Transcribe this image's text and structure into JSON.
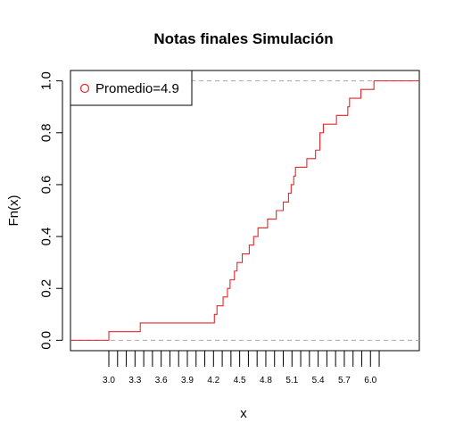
{
  "chart_data": {
    "type": "line",
    "subtype": "ecdf-step",
    "title": "Notas finales Simulación",
    "xlabel": "x",
    "ylabel": "Fn(x)",
    "xlim": [
      2.56,
      6.56
    ],
    "ylim": [
      -0.04,
      1.04
    ],
    "yticks": [
      0.0,
      0.2,
      0.4,
      0.6,
      0.8,
      1.0
    ],
    "ytick_labels": [
      "0.0",
      "0.2",
      "0.4",
      "0.6",
      "0.8",
      "1.0"
    ],
    "xticks": [
      3.0,
      3.1,
      3.2,
      3.3,
      3.4,
      3.5,
      3.6,
      3.7,
      3.8,
      3.9,
      4.0,
      4.1,
      4.2,
      4.3,
      4.4,
      4.5,
      4.6,
      4.7,
      4.8,
      4.9,
      5.0,
      5.1,
      5.2,
      5.3,
      5.4,
      5.5,
      5.6,
      5.7,
      5.8,
      5.9,
      6.0,
      6.1
    ],
    "xtick_labels": [
      "3.0",
      "3.3",
      "3.6",
      "3.9",
      "4.2",
      "4.5",
      "4.8",
      "5.1",
      "5.4",
      "5.7",
      "6.0"
    ],
    "xtick_label_positions": [
      3.0,
      3.3,
      3.6,
      3.9,
      4.2,
      4.5,
      4.8,
      5.1,
      5.4,
      5.7,
      6.0
    ],
    "reference_lines": [
      0.0,
      1.0
    ],
    "series": [
      {
        "name": "Promedio=4.9",
        "color": "#e8262a",
        "x": [
          3.0,
          3.36,
          4.21,
          4.24,
          4.31,
          4.36,
          4.39,
          4.44,
          4.47,
          4.53,
          4.61,
          4.66,
          4.71,
          4.82,
          4.92,
          5.0,
          5.06,
          5.09,
          5.12,
          5.14,
          5.16,
          5.27,
          5.37,
          5.42,
          5.46,
          5.5,
          5.61,
          5.74,
          5.76,
          5.89,
          6.04
        ],
        "y": [
          0.0333,
          0.0667,
          0.1,
          0.133,
          0.167,
          0.2,
          0.233,
          0.267,
          0.3,
          0.333,
          0.367,
          0.4,
          0.433,
          0.467,
          0.5,
          0.533,
          0.567,
          0.6,
          0.633,
          0.667,
          0.667,
          0.7,
          0.733,
          0.8,
          0.833,
          0.833,
          0.867,
          0.9,
          0.933,
          0.967,
          1.0
        ]
      }
    ],
    "legend": {
      "position": "top-left",
      "entries": [
        "Promedio=4.9"
      ],
      "marker": "open-circle"
    }
  },
  "colors": {
    "series": "#e8262a",
    "reference_line": "#aaaaaa",
    "axis": "#000000"
  }
}
